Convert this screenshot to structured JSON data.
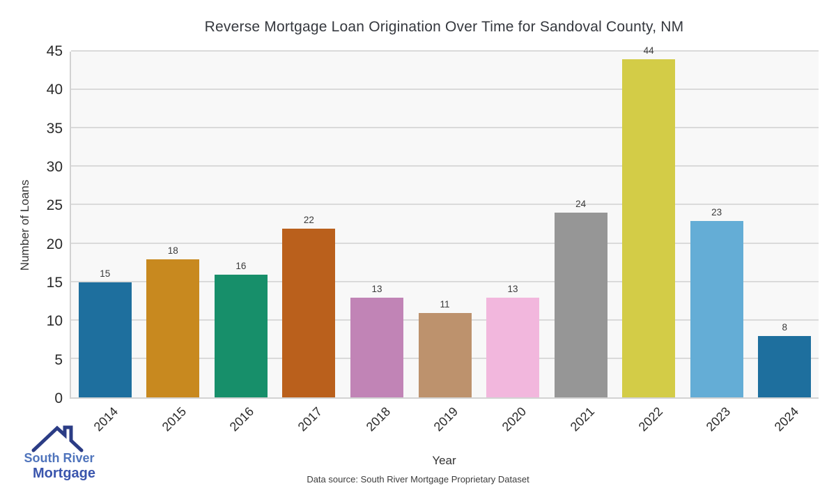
{
  "title": "Reverse Mortgage Loan Origination Over Time for Sandoval County, NM",
  "chart_data": {
    "type": "bar",
    "categories": [
      "2014",
      "2015",
      "2016",
      "2017",
      "2018",
      "2019",
      "2020",
      "2021",
      "2022",
      "2023",
      "2024"
    ],
    "values": [
      15,
      18,
      16,
      22,
      13,
      11,
      13,
      24,
      44,
      23,
      8
    ],
    "bar_colors": [
      "#1e6f9e",
      "#c8891f",
      "#178f6a",
      "#ba601c",
      "#c184b6",
      "#bd926d",
      "#f2b7dd",
      "#969696",
      "#d3cc47",
      "#64add6",
      "#1e6f9e"
    ],
    "title": "Reverse Mortgage Loan Origination Over Time for Sandoval County, NM",
    "xlabel": "Year",
    "ylabel": "Number of Loans",
    "ylim": [
      0,
      45
    ],
    "yticks": [
      0,
      5,
      10,
      15,
      20,
      25,
      30,
      35,
      40,
      45
    ],
    "grid": true,
    "legend_position": "none",
    "bar_value_labels_shown": true,
    "plot_background": "#f8f8f8",
    "gridline_color": "#dadada"
  },
  "footer": {
    "caption": "Data source: South River Mortgage Proprietary Dataset"
  },
  "logo": {
    "line1": "South River",
    "line2": "Mortgage",
    "icon": "house-roof-icon",
    "roof_color": "#2b3c85",
    "line1_color": "#4f74bc",
    "line2_color": "#3a55ad"
  }
}
